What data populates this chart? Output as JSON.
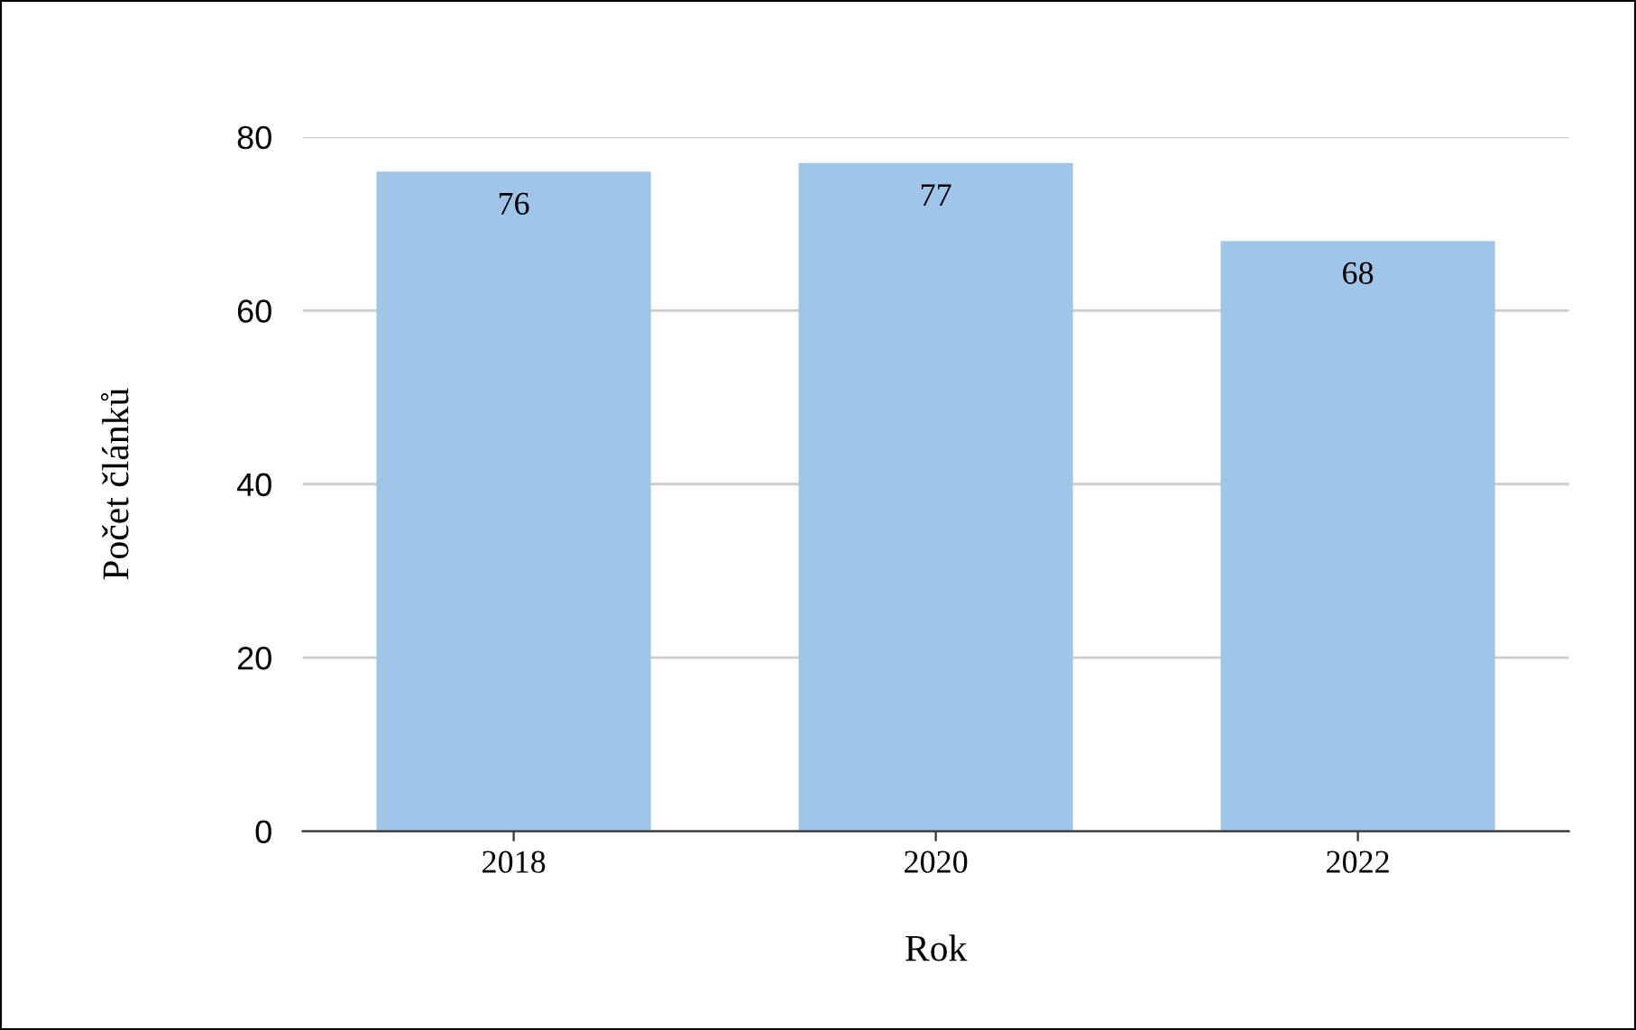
{
  "chart_data": {
    "type": "bar",
    "xlabel": "Rok",
    "ylabel": "Počet článků",
    "categories": [
      "2018",
      "2020",
      "2022"
    ],
    "values": [
      76,
      77,
      68
    ],
    "color": "#9fc5e8",
    "ylim": [
      0,
      80
    ],
    "yticks": [
      0,
      20,
      40,
      60,
      80
    ],
    "grid": "y",
    "data_labels": true,
    "legend": false
  }
}
